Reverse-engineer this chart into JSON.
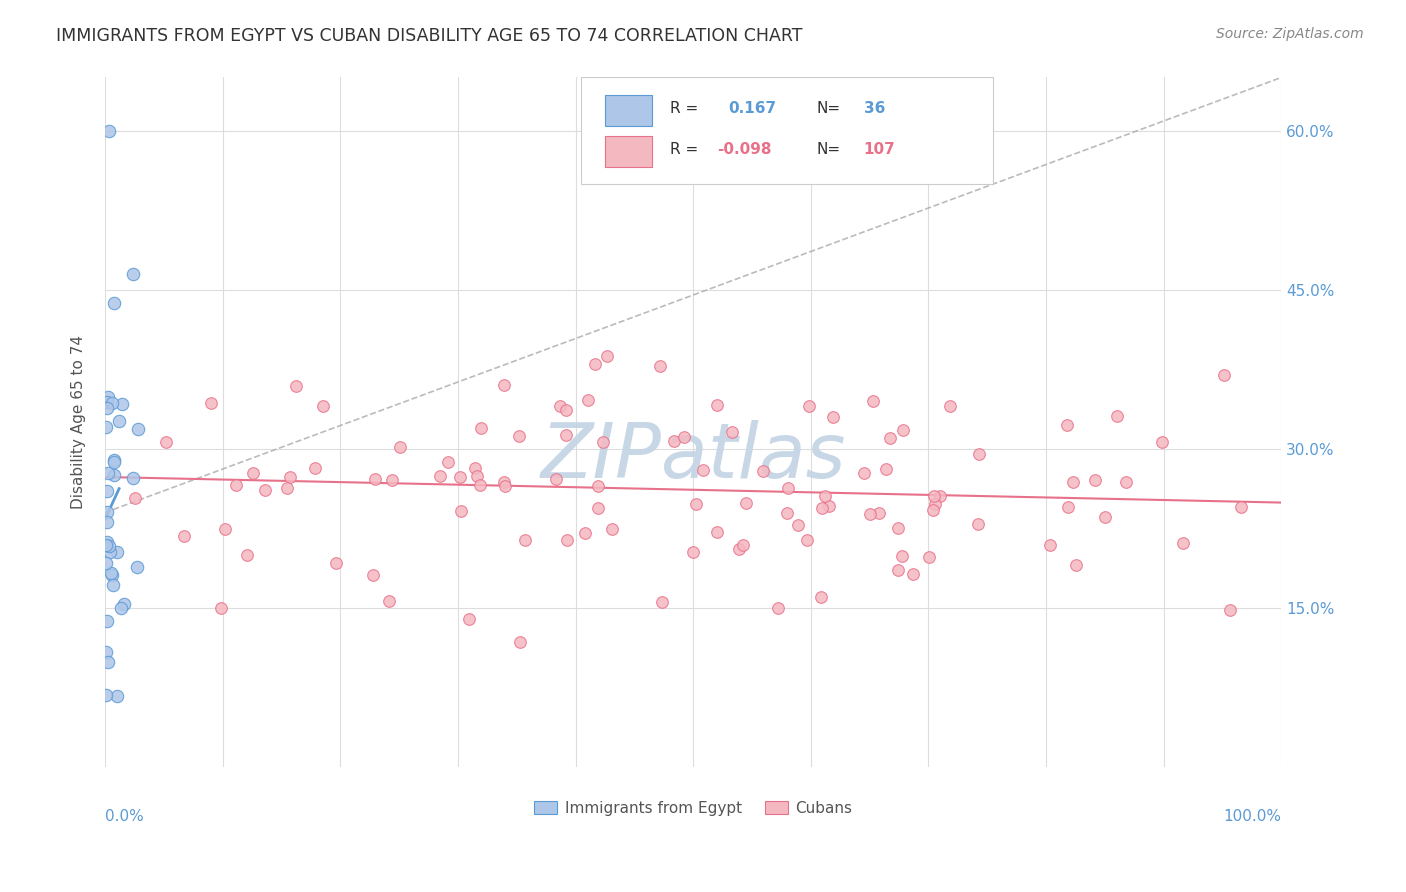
{
  "title": "IMMIGRANTS FROM EGYPT VS CUBAN DISABILITY AGE 65 TO 74 CORRELATION CHART",
  "source": "Source: ZipAtlas.com",
  "ylabel": "Disability Age 65 to 74",
  "ytick_values": [
    0.15,
    0.3,
    0.45,
    0.6
  ],
  "legend_entry1": {
    "label": "Immigrants from Egypt",
    "R": 0.167,
    "N": 36,
    "color": "#aec6e8",
    "line_color": "#5b9bd5"
  },
  "legend_entry2": {
    "label": "Cubans",
    "R": -0.098,
    "N": 107,
    "color": "#f4b8c1",
    "line_color": "#e8718a"
  },
  "background_color": "#ffffff",
  "grid_color": "#dddddd",
  "axis_color": "#5b9bd5",
  "xmin": 0.0,
  "xmax": 1.0,
  "ymin": 0.0,
  "ymax": 0.65
}
